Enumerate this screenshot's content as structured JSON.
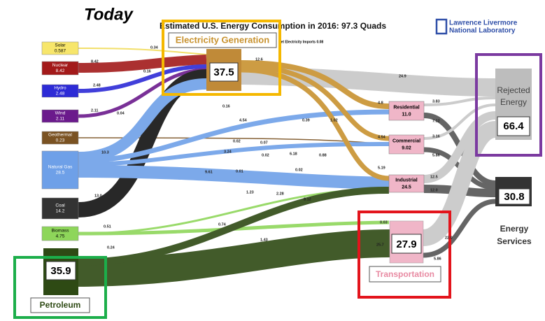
{
  "title_annotation": "Today",
  "header": {
    "title": "Estimated U.S. Energy Consumption in 2016: 97.3 Quads",
    "org": [
      "Lawrence Livermore",
      "National Laboratory"
    ]
  },
  "imports": "Net Electricity Imports 0.08",
  "sources": [
    {
      "name": "Solar",
      "value": "0.587"
    },
    {
      "name": "Nuclear",
      "value": "8.42"
    },
    {
      "name": "Hydro",
      "value": "2.48"
    },
    {
      "name": "Wind",
      "value": "2.11"
    },
    {
      "name": "Geothermal",
      "value": "0.23"
    },
    {
      "name": "Natural Gas",
      "value": "28.5"
    },
    {
      "name": "Coal",
      "value": "14.2"
    },
    {
      "name": "Biomass",
      "value": "4.75"
    }
  ],
  "petroleum": {
    "value": "35.9",
    "label": "Petroleum"
  },
  "electricity": {
    "label": "Electricity Generation",
    "value": "37.5"
  },
  "sectors": [
    {
      "name": "Residential",
      "value": "11.0"
    },
    {
      "name": "Commercial",
      "value": "9.02"
    },
    {
      "name": "Industrial",
      "value": "24.5"
    }
  ],
  "transportation": {
    "value": "27.9",
    "label": "Transportation"
  },
  "rejected": {
    "label": [
      "Rejected",
      "Energy"
    ],
    "value": "66.4"
  },
  "services": {
    "label": [
      "Energy",
      "Services"
    ],
    "value": "30.8"
  },
  "flow_labels": [
    "0.34",
    "8.42",
    "0.16",
    "2.48",
    "2.11",
    "0.04",
    "12.6",
    "24.9",
    "0.16",
    "4.54",
    "0.39",
    "1.02",
    "4.8",
    "3.83",
    "7.12",
    "0.07",
    "0.02",
    "4.54",
    "3.16",
    "5.86",
    "10.3",
    "3.24",
    "0.02",
    "6.18",
    "0.88",
    "9.61",
    "0.01",
    "0.02",
    "5.19",
    "12.5",
    "12.0",
    "13.0",
    "1.23",
    "2.28",
    "8.12",
    "0.74",
    "0.51",
    "1.43",
    "0.24",
    "0.03",
    "25.7",
    "22.0",
    "5.86"
  ]
}
